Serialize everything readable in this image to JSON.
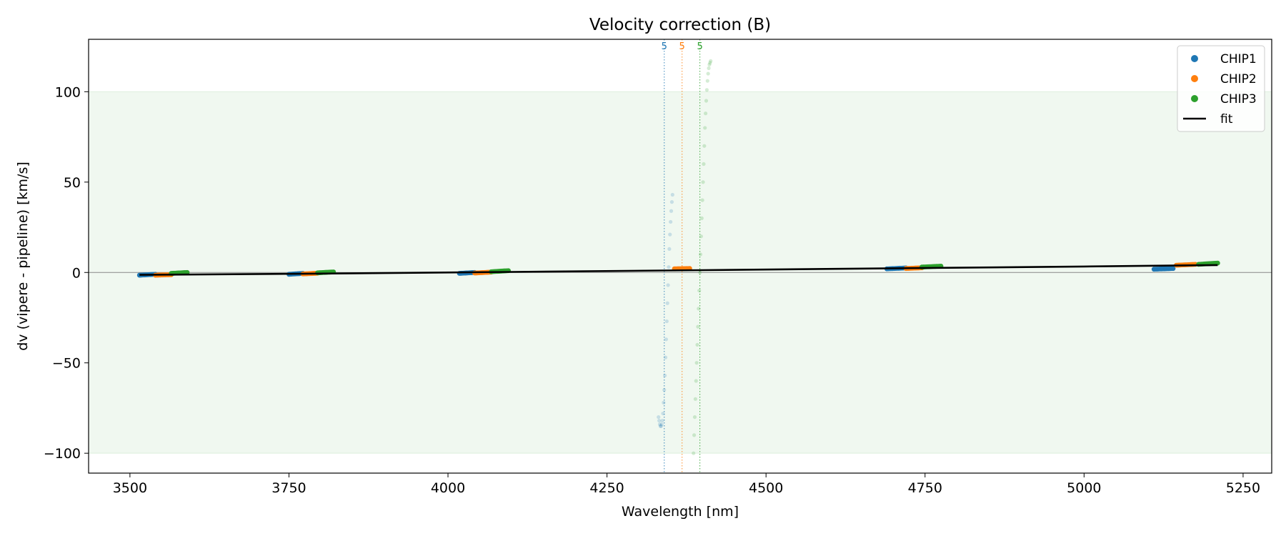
{
  "chart_data": {
    "type": "scatter",
    "title": "Velocity correction (B)",
    "xlabel": "Wavelength [nm]",
    "ylabel": "dv (vipere - pipeline) [km/s]",
    "xlim": [
      3435,
      5295
    ],
    "ylim": [
      -111,
      129
    ],
    "x_ticks": [
      3500,
      3750,
      4000,
      4250,
      4500,
      4750,
      5000,
      5250
    ],
    "y_ticks": [
      -100,
      -50,
      0,
      50,
      100
    ],
    "x_tick_labels": [
      "3500",
      "3750",
      "4000",
      "4250",
      "4500",
      "4750",
      "5000",
      "5250"
    ],
    "y_tick_labels": [
      "−100",
      "−50",
      "0",
      "50",
      "100"
    ],
    "shaded_band": {
      "y_from": -100,
      "y_to": 100,
      "color": "#2ca02c"
    },
    "zero_line": 0,
    "grid": false,
    "legend_position": "top-right",
    "series": [
      {
        "name": "CHIP1",
        "color": "#1f77b4",
        "segments": [
          {
            "x_from": 3515,
            "x_to": 3540,
            "y_from": -1.5,
            "y_to": -1.0
          },
          {
            "x_from": 3750,
            "x_to": 3772,
            "y_from": -1.0,
            "y_to": -0.5
          },
          {
            "x_from": 4018,
            "x_to": 4042,
            "y_from": -0.5,
            "y_to": 0.0
          },
          {
            "x_from": 4690,
            "x_to": 4720,
            "y_from": 2.0,
            "y_to": 2.5
          },
          {
            "x_from": 5110,
            "x_to": 5140,
            "y_from": 1.8,
            "y_to": 2.2
          }
        ]
      },
      {
        "name": "CHIP2",
        "color": "#ff7f0e",
        "segments": [
          {
            "x_from": 3540,
            "x_to": 3565,
            "y_from": -1.5,
            "y_to": -1.2
          },
          {
            "x_from": 3772,
            "x_to": 3795,
            "y_from": -0.8,
            "y_to": -0.4
          },
          {
            "x_from": 4042,
            "x_to": 4068,
            "y_from": -0.3,
            "y_to": 0.2
          },
          {
            "x_from": 4356,
            "x_to": 4380,
            "y_from": 2.0,
            "y_to": 2.2
          },
          {
            "x_from": 4720,
            "x_to": 4745,
            "y_from": 2.2,
            "y_to": 2.6
          },
          {
            "x_from": 5145,
            "x_to": 5175,
            "y_from": 4.0,
            "y_to": 4.5
          }
        ]
      },
      {
        "name": "CHIP3",
        "color": "#2ca02c",
        "segments": [
          {
            "x_from": 3565,
            "x_to": 3590,
            "y_from": -0.5,
            "y_to": 0.0
          },
          {
            "x_from": 3795,
            "x_to": 3820,
            "y_from": -0.2,
            "y_to": 0.3
          },
          {
            "x_from": 4068,
            "x_to": 4095,
            "y_from": 0.4,
            "y_to": 1.0
          },
          {
            "x_from": 4745,
            "x_to": 4775,
            "y_from": 3.0,
            "y_to": 3.5
          },
          {
            "x_from": 5180,
            "x_to": 5210,
            "y_from": 4.5,
            "y_to": 5.2
          }
        ]
      }
    ],
    "outliers": [
      {
        "series": "CHIP1",
        "points": [
          [
            4331,
            -80
          ],
          [
            4332,
            -82
          ],
          [
            4333,
            -84
          ],
          [
            4334,
            -85
          ],
          [
            4335,
            -85
          ],
          [
            4336,
            -84
          ],
          [
            4337,
            -82
          ],
          [
            4338,
            -78
          ],
          [
            4339,
            -72
          ],
          [
            4340,
            -65
          ],
          [
            4341,
            -57
          ],
          [
            4342,
            -47
          ],
          [
            4343,
            -37
          ],
          [
            4344,
            -27
          ],
          [
            4345,
            -17
          ],
          [
            4346,
            -7
          ],
          [
            4347,
            3
          ],
          [
            4348,
            13
          ],
          [
            4349,
            21
          ],
          [
            4350,
            28
          ],
          [
            4351,
            34
          ],
          [
            4352,
            39
          ],
          [
            4353,
            43
          ]
        ]
      },
      {
        "series": "CHIP3",
        "points": [
          [
            4386,
            -100
          ],
          [
            4387,
            -90
          ],
          [
            4388,
            -80
          ],
          [
            4389,
            -70
          ],
          [
            4390,
            -60
          ],
          [
            4391,
            -50
          ],
          [
            4392,
            -40
          ],
          [
            4393,
            -30
          ],
          [
            4394,
            -20
          ],
          [
            4395,
            -10
          ],
          [
            4396,
            0
          ],
          [
            4397,
            10
          ],
          [
            4398,
            20
          ],
          [
            4399,
            30
          ],
          [
            4400,
            40
          ],
          [
            4401,
            50
          ],
          [
            4402,
            60
          ],
          [
            4403,
            70
          ],
          [
            4404,
            80
          ],
          [
            4405,
            88
          ],
          [
            4406,
            95
          ],
          [
            4407,
            101
          ],
          [
            4408,
            106
          ],
          [
            4409,
            110
          ],
          [
            4410,
            113
          ],
          [
            4411,
            115
          ],
          [
            4412,
            116
          ],
          [
            4413,
            117
          ]
        ]
      }
    ],
    "fit": {
      "name": "fit",
      "color": "#000000",
      "points": [
        [
          3515,
          -1.3
        ],
        [
          3800,
          -0.6
        ],
        [
          4100,
          0.3
        ],
        [
          4400,
          1.3
        ],
        [
          4700,
          2.3
        ],
        [
          5000,
          3.3
        ],
        [
          5210,
          4.1
        ]
      ]
    },
    "order_markers": [
      {
        "x": 4340,
        "label": "5",
        "color": "#1f77b4"
      },
      {
        "x": 4368,
        "label": "5",
        "color": "#ff7f0e"
      },
      {
        "x": 4396,
        "label": "5",
        "color": "#2ca02c"
      }
    ]
  }
}
